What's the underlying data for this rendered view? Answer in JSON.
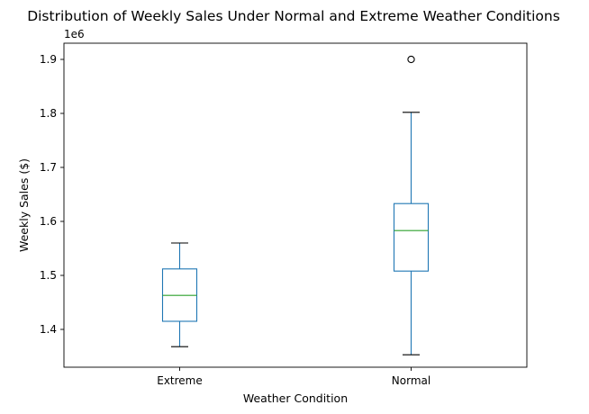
{
  "chart_data": {
    "type": "box",
    "title": "Distribution of Weekly Sales Under Normal and Extreme Weather Conditions",
    "xlabel": "Weather Condition",
    "ylabel": "Weekly Sales ($)",
    "y_offset_label": "1e6",
    "categories": [
      "Extreme",
      "Normal"
    ],
    "ylim": [
      1.33,
      1.93
    ],
    "yticks": [
      1.4,
      1.5,
      1.6,
      1.7,
      1.8,
      1.9
    ],
    "ytick_labels": [
      "1.4",
      "1.5",
      "1.6",
      "1.7",
      "1.8",
      "1.9"
    ],
    "grid": false,
    "boxes": [
      {
        "category": "Extreme",
        "whisker_low": 1.368,
        "q1": 1.415,
        "median": 1.463,
        "q3": 1.512,
        "whisker_high": 1.56,
        "outliers": []
      },
      {
        "category": "Normal",
        "whisker_low": 1.353,
        "q1": 1.508,
        "median": 1.583,
        "q3": 1.633,
        "whisker_high": 1.802,
        "outliers": [
          1.9
        ]
      }
    ],
    "colors": {
      "box": "#1f77b4",
      "median": "#2ca02c",
      "whisker": "#1f77b4",
      "cap": "#000000",
      "outlier": "#000000"
    }
  }
}
